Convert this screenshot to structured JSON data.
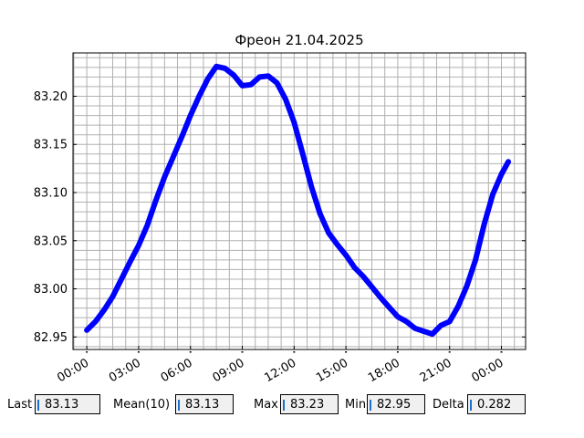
{
  "chart_data": {
    "type": "line",
    "title": "Фреон 21.04.2025",
    "xlabel": "",
    "ylabel": "",
    "x_ticks": [
      "00:00",
      "03:00",
      "06:00",
      "09:00",
      "12:00",
      "15:00",
      "18:00",
      "21:00",
      "00:00"
    ],
    "y_ticks": [
      "82.95",
      "83.00",
      "83.05",
      "83.10",
      "83.15",
      "83.20"
    ],
    "xlim_hours": [
      -0.8,
      25.4
    ],
    "ylim": [
      82.937,
      83.245
    ],
    "grid": true,
    "series": [
      {
        "color": "#0000ff",
        "x_hours": [
          0.0,
          0.5,
          1.0,
          1.5,
          2.0,
          2.5,
          3.0,
          3.5,
          4.0,
          4.5,
          5.0,
          5.5,
          6.0,
          6.5,
          7.0,
          7.5,
          8.0,
          8.5,
          9.0,
          9.5,
          10.0,
          10.5,
          11.0,
          11.5,
          12.0,
          12.5,
          13.0,
          13.5,
          14.0,
          14.5,
          15.0,
          15.5,
          16.0,
          16.5,
          17.0,
          17.5,
          18.0,
          18.5,
          19.0,
          19.5,
          20.0,
          20.5,
          21.0,
          21.5,
          22.0,
          22.5,
          23.0,
          23.5,
          24.0,
          24.4
        ],
        "values": [
          82.957,
          82.966,
          82.978,
          82.992,
          83.01,
          83.028,
          83.045,
          83.066,
          83.092,
          83.116,
          83.137,
          83.158,
          83.18,
          83.2,
          83.218,
          83.231,
          83.229,
          83.222,
          83.211,
          83.212,
          83.22,
          83.221,
          83.214,
          83.197,
          83.173,
          83.14,
          83.106,
          83.078,
          83.058,
          83.046,
          83.035,
          83.022,
          83.013,
          83.002,
          82.991,
          82.981,
          82.971,
          82.966,
          82.959,
          82.956,
          82.953,
          82.962,
          82.966,
          82.982,
          83.003,
          83.03,
          83.067,
          83.098,
          83.119,
          83.132
        ]
      }
    ]
  },
  "stats": {
    "last_label": "Last",
    "last_value": "83.13",
    "mean_label": "Mean(10)",
    "mean_value": "83.13",
    "max_label": "Max",
    "max_value": "83.23",
    "min_label": "Min",
    "min_value": "82.95",
    "delta_label": "Delta",
    "delta_value": "0.282"
  }
}
